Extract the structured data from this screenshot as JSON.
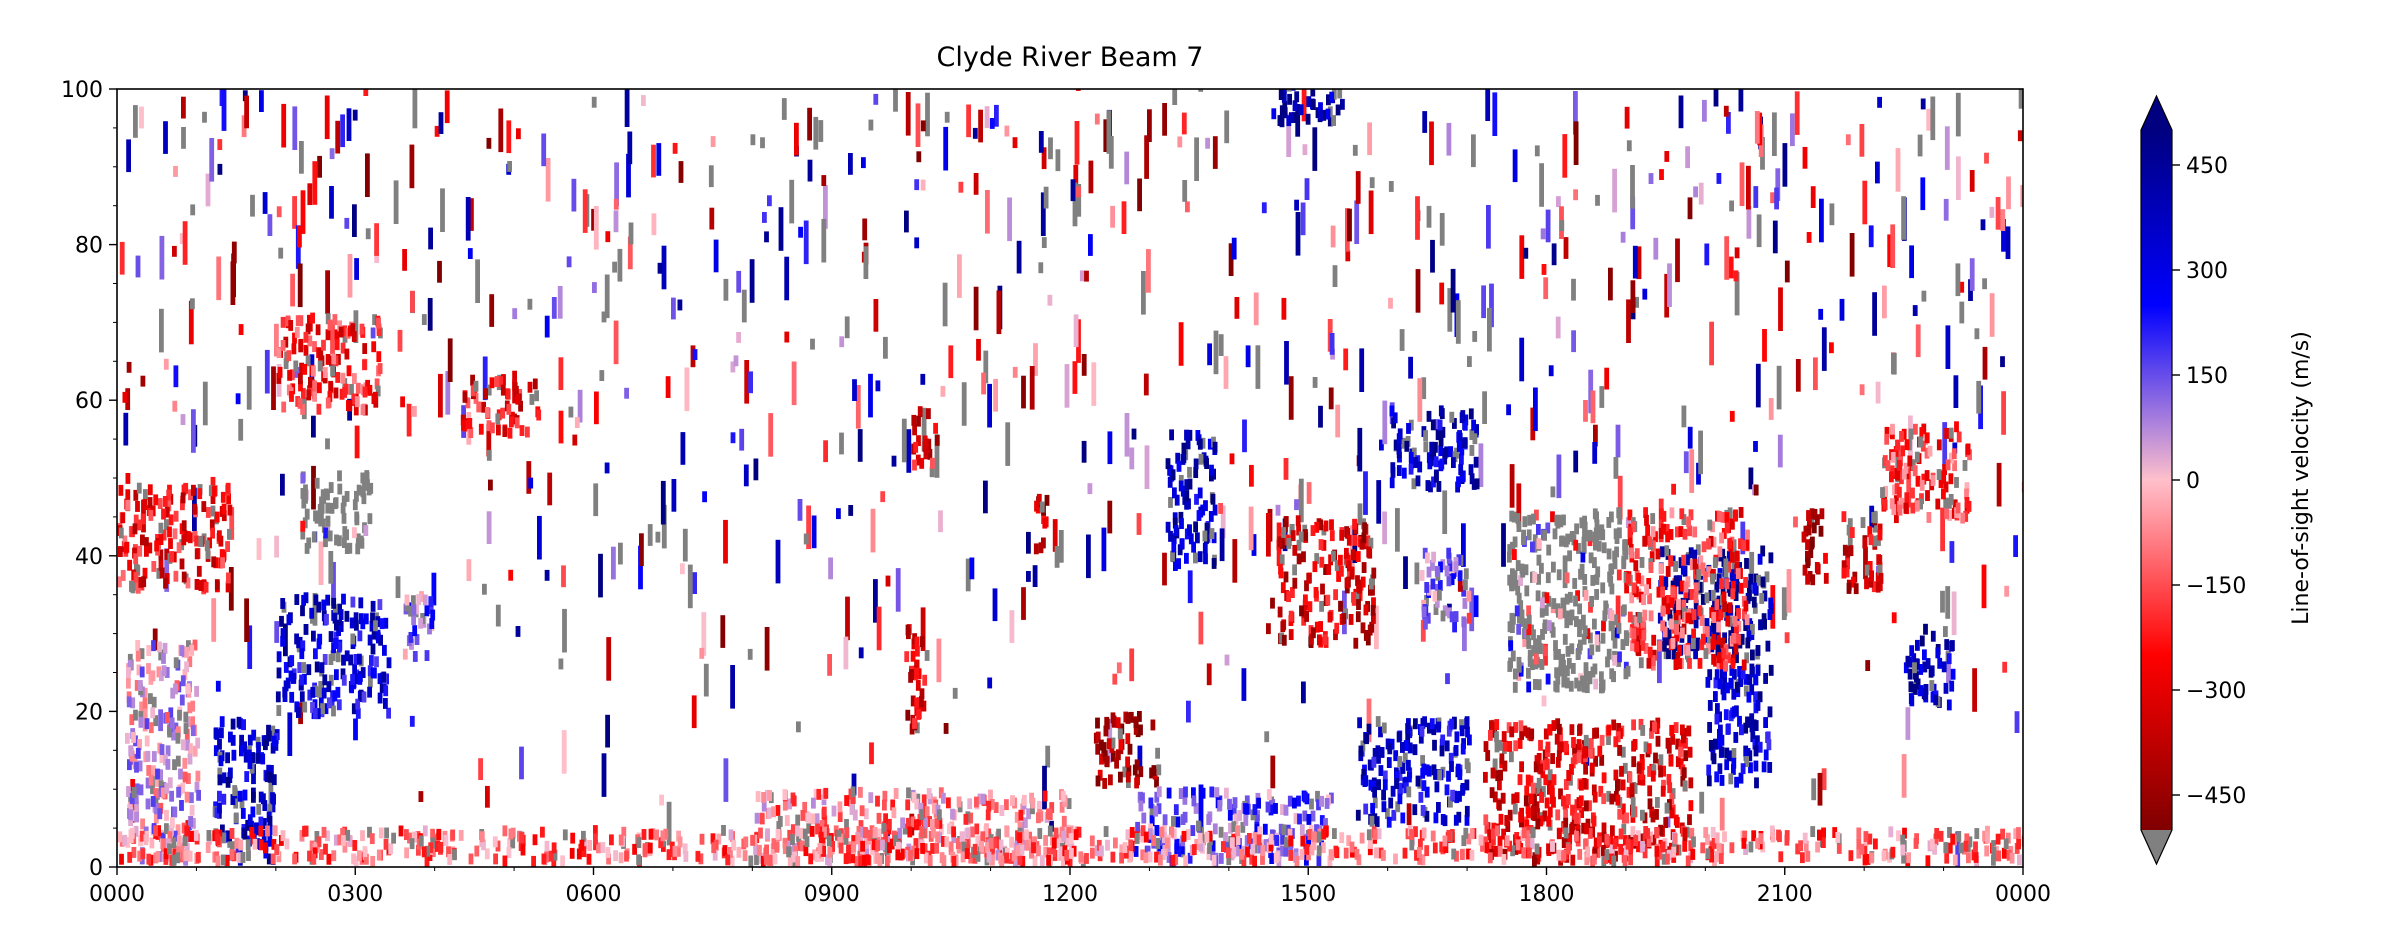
{
  "chart_data": {
    "type": "heatmap",
    "title": "Clyde River Beam 7",
    "xlabel": "",
    "ylabel": "",
    "x_ticks": [
      "0000",
      "0300",
      "0600",
      "0900",
      "1200",
      "1500",
      "1800",
      "2100",
      "0000"
    ],
    "y_ticks": [
      0,
      20,
      40,
      60,
      80,
      100
    ],
    "xlim_hours": [
      0,
      24
    ],
    "ylim": [
      0,
      100
    ],
    "grid": false,
    "colorbar": {
      "label": "Line-of-sight velocity (m/s)",
      "ticks": [
        -450,
        -300,
        -150,
        0,
        150,
        300,
        450
      ],
      "vmin": -500,
      "vmax": 500,
      "extend_high_color": "#000080",
      "extend_low_color": "#808080",
      "ground_scatter_color": "#808080"
    },
    "regions": [
      {
        "t0": 0.0,
        "t1": 1.4,
        "g0": 35,
        "g1": 48,
        "v": -250
      },
      {
        "t0": 0.1,
        "t1": 1.0,
        "g0": 0,
        "g1": 28,
        "v": 20
      },
      {
        "t0": 1.2,
        "t1": 2.0,
        "g0": 0,
        "g1": 18,
        "v": 360
      },
      {
        "t0": 2.0,
        "t1": 3.4,
        "g0": 19,
        "g1": 34,
        "v": 320
      },
      {
        "t0": 2.0,
        "t1": 3.3,
        "g0": 58,
        "g1": 70,
        "v": -220
      },
      {
        "t0": 2.3,
        "t1": 3.2,
        "g0": 40,
        "g1": 50,
        "gs": true
      },
      {
        "t0": 3.6,
        "t1": 4.0,
        "g0": 26,
        "g1": 35,
        "v": 120
      },
      {
        "t0": 4.3,
        "t1": 5.3,
        "g0": 55,
        "g1": 62,
        "v": -260
      },
      {
        "t0": 9.9,
        "t1": 10.2,
        "g0": 17,
        "g1": 30,
        "v": -340
      },
      {
        "t0": 12.3,
        "t1": 13.1,
        "g0": 10,
        "g1": 19,
        "v": -440
      },
      {
        "t0": 13.2,
        "t1": 13.8,
        "g0": 38,
        "g1": 55,
        "v": 380
      },
      {
        "t0": 14.6,
        "t1": 15.8,
        "g0": 28,
        "g1": 44,
        "v": -330
      },
      {
        "t0": 16.0,
        "t1": 17.1,
        "g0": 48,
        "g1": 58,
        "v": 370
      },
      {
        "t0": 17.5,
        "t1": 19.0,
        "g0": 22,
        "g1": 45,
        "gs": true
      },
      {
        "t0": 19.4,
        "t1": 20.8,
        "g0": 26,
        "g1": 40,
        "v": 460
      },
      {
        "t0": 20.0,
        "t1": 20.8,
        "g0": 10,
        "g1": 25,
        "v": 340
      },
      {
        "t0": 22.5,
        "t1": 23.1,
        "g0": 20,
        "g1": 30,
        "v": 380
      },
      {
        "t0": 22.2,
        "t1": 23.3,
        "g0": 44,
        "g1": 56,
        "v": -180
      },
      {
        "t0": 21.7,
        "t1": 22.2,
        "g0": 35,
        "g1": 45,
        "v": -350
      },
      {
        "t0": 17.2,
        "t1": 19.8,
        "g0": 0,
        "g1": 18,
        "v": -300
      },
      {
        "t0": 15.6,
        "t1": 17.0,
        "g0": 5,
        "g1": 18,
        "v": 340
      },
      {
        "t0": 19.0,
        "t1": 20.5,
        "g0": 25,
        "g1": 45,
        "v": -200
      },
      {
        "t0": 12.8,
        "t1": 15.3,
        "g0": 0,
        "g1": 9,
        "v": 150
      },
      {
        "t0": 8.0,
        "t1": 12.0,
        "g0": 0,
        "g1": 9,
        "v": -80
      },
      {
        "t0": 0.0,
        "t1": 24.0,
        "g0": 0,
        "g1": 4,
        "v": -120
      },
      {
        "t0": 14.5,
        "t1": 15.4,
        "g0": 95,
        "g1": 100,
        "v": 420
      },
      {
        "t0": 16.4,
        "t1": 17.0,
        "g0": 30,
        "g1": 40,
        "v": 100
      },
      {
        "t0": 10.0,
        "t1": 10.3,
        "g0": 50,
        "g1": 58,
        "v": -300
      },
      {
        "t0": 11.5,
        "t1": 11.7,
        "g0": 40,
        "g1": 47,
        "v": -360
      },
      {
        "t0": 21.2,
        "t1": 21.5,
        "g0": 35,
        "g1": 45,
        "v": -400
      }
    ]
  }
}
